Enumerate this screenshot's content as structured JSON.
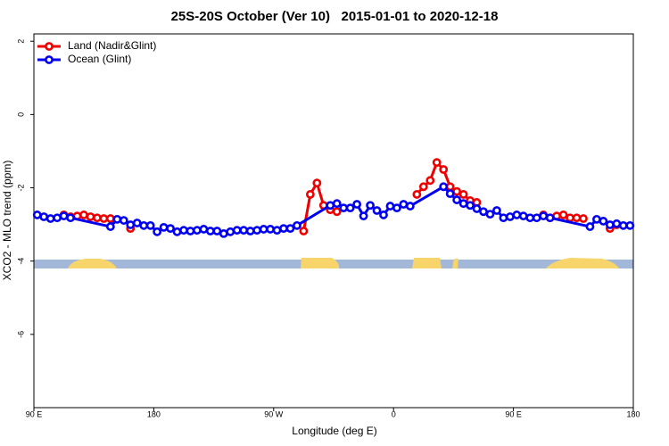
{
  "chart_data": {
    "type": "line",
    "title": "25S-20S October (Ver 10)   2015-01-01 to 2020-12-18",
    "x_label": "Longitude (deg E)",
    "y_label": "XCO2 - MLO trend (ppm)",
    "xlim": [
      90,
      540
    ],
    "ylim": [
      -8,
      2.2
    ],
    "xticks": [
      {
        "value": 90,
        "label": "90 E"
      },
      180,
      {
        "value": 270,
        "label": "90 W"
      },
      {
        "value": 360,
        "label": "0"
      },
      {
        "value": 450,
        "label": "90 E"
      },
      {
        "value": 540,
        "label": "180"
      }
    ],
    "yticks": [
      2,
      0,
      -2,
      -4,
      -6
    ],
    "legend": "top-left",
    "series": [
      {
        "name": "Land (Nadir&Glint)",
        "color": "#ee0000",
        "x": [
          112.5,
          117.5,
          122.5,
          127.5,
          132.5,
          137.5,
          142.5,
          147.5,
          null,
          162.5,
          null,
          292.5,
          297.5,
          302.5,
          307.5,
          312.5,
          317.5,
          null,
          377.5,
          382.5,
          387.5,
          392.5,
          397.5,
          402.5,
          407.5,
          412.5,
          417.5,
          422.5,
          null,
          472.5,
          477.5,
          482.5,
          487.5,
          492.5,
          497.5,
          502.5,
          null,
          522.5,
          527.5
        ],
        "values": [
          -2.74,
          -2.79,
          -2.77,
          -2.74,
          -2.79,
          -2.82,
          -2.84,
          -2.84,
          null,
          -3.11,
          null,
          -3.18,
          -2.18,
          -1.87,
          -2.48,
          -2.6,
          -2.65,
          null,
          -2.18,
          -1.97,
          -1.8,
          -1.31,
          -1.5,
          -1.97,
          -2.1,
          -2.18,
          -2.35,
          -2.4,
          null,
          -2.74,
          -2.82,
          -2.77,
          -2.74,
          -2.82,
          -2.82,
          -2.84,
          null,
          -3.11,
          -3.01
        ]
      },
      {
        "name": "Ocean (Glint)",
        "color": "#0000ee",
        "x": [
          92.5,
          97.5,
          102.5,
          107.5,
          112.5,
          117.5,
          147.5,
          152.5,
          157.5,
          162.5,
          167.5,
          172.5,
          177.5,
          182.5,
          187.5,
          192.5,
          197.5,
          202.5,
          207.5,
          212.5,
          217.5,
          222.5,
          227.5,
          232.5,
          237.5,
          242.5,
          247.5,
          252.5,
          257.5,
          262.5,
          267.5,
          272.5,
          277.5,
          282.5,
          287.5,
          312.5,
          317.5,
          322.5,
          327.5,
          332.5,
          337.5,
          342.5,
          347.5,
          352.5,
          357.5,
          362.5,
          367.5,
          372.5,
          397.5,
          402.5,
          407.5,
          412.5,
          417.5,
          422.5,
          427.5,
          432.5,
          437.5,
          442.5,
          447.5,
          452.5,
          457.5,
          462.5,
          467.5,
          472.5,
          477.5,
          507.5,
          512.5,
          517.5,
          522.5,
          527.5,
          532.5,
          537.5
        ],
        "values": [
          -2.74,
          -2.79,
          -2.84,
          -2.82,
          -2.77,
          -2.82,
          -3.06,
          -2.86,
          -2.89,
          -3.01,
          -2.96,
          -3.03,
          -3.03,
          -3.2,
          -3.08,
          -3.11,
          -3.2,
          -3.16,
          -3.18,
          -3.16,
          -3.13,
          -3.18,
          -3.18,
          -3.25,
          -3.2,
          -3.16,
          -3.16,
          -3.18,
          -3.16,
          -3.13,
          -3.13,
          -3.16,
          -3.11,
          -3.11,
          -3.03,
          -2.48,
          -2.43,
          -2.55,
          -2.55,
          -2.45,
          -2.77,
          -2.48,
          -2.62,
          -2.74,
          -2.5,
          -2.55,
          -2.45,
          -2.5,
          -1.97,
          -2.16,
          -2.33,
          -2.43,
          -2.48,
          -2.57,
          -2.65,
          -2.72,
          -2.62,
          -2.82,
          -2.79,
          -2.74,
          -2.77,
          -2.82,
          -2.82,
          -2.77,
          -2.82,
          -3.06,
          -2.86,
          -2.91,
          -3.01,
          -2.98,
          -3.03,
          -3.03
        ]
      }
    ]
  }
}
